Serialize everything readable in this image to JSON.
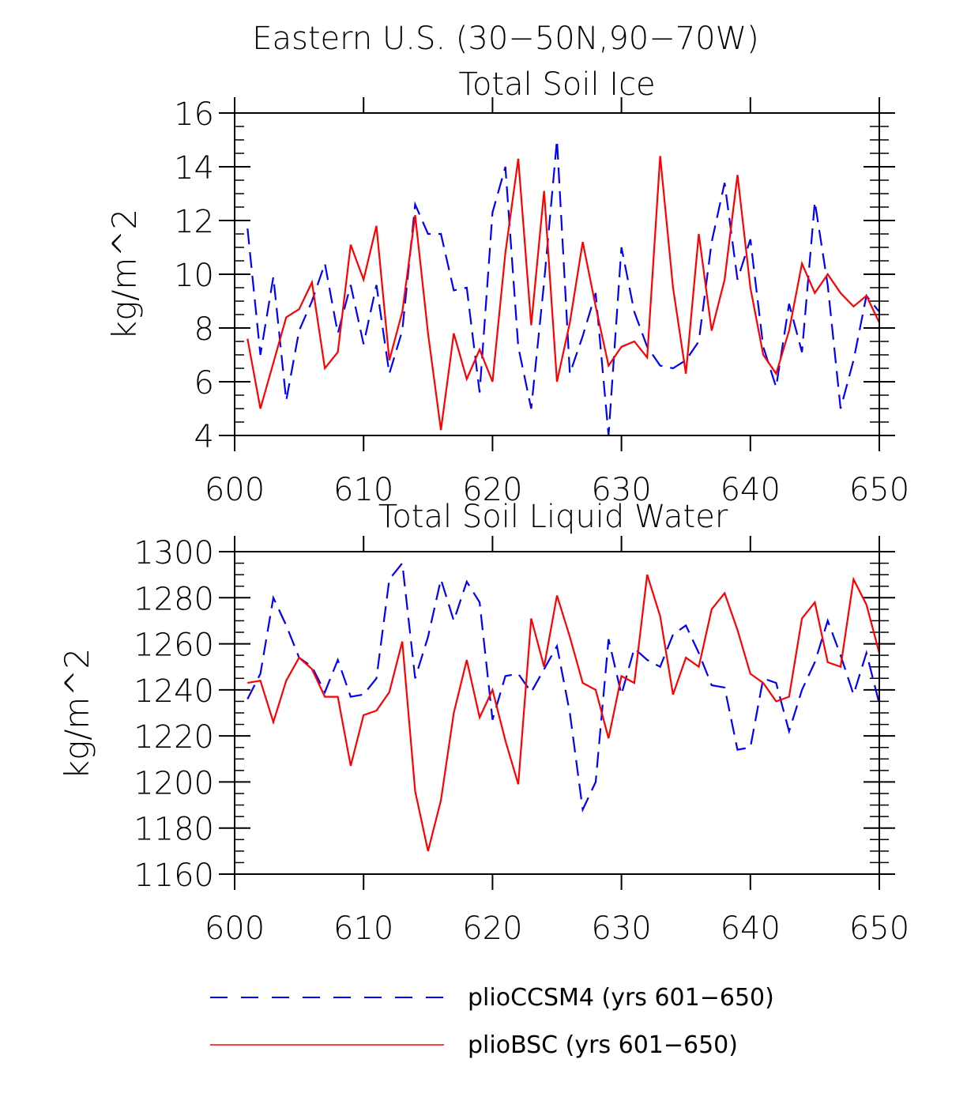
{
  "figure_title": "Eastern U.S. (30−50N,90−70W)",
  "legend": [
    {
      "label": "plioCCSM4 (yrs 601−650)",
      "color": "#0000ff",
      "style": "dashed"
    },
    {
      "label": "plioBSC (yrs 601−650)",
      "color": "#ff0000",
      "style": "solid"
    }
  ],
  "chart_data": [
    {
      "type": "line",
      "title": "Total Soil Ice",
      "xlabel": "",
      "ylabel": "kg/m^2",
      "xlim": [
        600,
        650
      ],
      "ylim": [
        4,
        16
      ],
      "xticks": [
        "600",
        "610",
        "620",
        "630",
        "640",
        "650"
      ],
      "yticks": [
        "4",
        "6",
        "8",
        "10",
        "12",
        "14",
        "16"
      ],
      "x": [
        601,
        602,
        603,
        604,
        605,
        606,
        607,
        608,
        609,
        610,
        611,
        612,
        613,
        614,
        615,
        616,
        617,
        618,
        619,
        620,
        621,
        622,
        623,
        624,
        625,
        626,
        627,
        628,
        629,
        630,
        631,
        632,
        633,
        634,
        635,
        636,
        637,
        638,
        639,
        640,
        641,
        642,
        643,
        644,
        645,
        646,
        647,
        648,
        649,
        650
      ],
      "series": [
        {
          "name": "plioCCSM4 (yrs 601−650)",
          "color": "#0000ff",
          "style": "dashed",
          "values": [
            11.7,
            7.0,
            9.9,
            5.3,
            7.9,
            9.0,
            10.4,
            7.8,
            9.6,
            7.4,
            9.6,
            6.3,
            7.9,
            12.6,
            11.5,
            11.5,
            9.4,
            9.5,
            5.6,
            12.3,
            14.0,
            7.3,
            5.0,
            9.7,
            15.0,
            6.3,
            7.7,
            9.3,
            4.0,
            11.0,
            8.6,
            7.3,
            6.6,
            6.5,
            6.8,
            7.5,
            11.2,
            13.4,
            9.8,
            11.3,
            7.3,
            5.8,
            8.9,
            7.1,
            12.7,
            9.6,
            5.0,
            6.8,
            9.2,
            8.6
          ]
        },
        {
          "name": "plioBSC (yrs 601−650)",
          "color": "#ff0000",
          "style": "solid",
          "values": [
            7.6,
            5.0,
            6.7,
            8.4,
            8.7,
            9.7,
            6.5,
            7.1,
            11.1,
            9.8,
            11.8,
            6.8,
            8.6,
            12.2,
            7.8,
            4.2,
            7.8,
            6.1,
            7.2,
            6.0,
            10.8,
            14.3,
            8.1,
            13.1,
            6.0,
            8.2,
            11.2,
            8.8,
            6.6,
            7.3,
            7.5,
            6.9,
            14.4,
            9.5,
            6.3,
            11.5,
            7.9,
            9.8,
            13.7,
            9.5,
            7.0,
            6.3,
            7.9,
            10.4,
            9.3,
            10.0,
            9.3,
            8.8,
            9.2,
            8.2
          ]
        }
      ]
    },
    {
      "type": "line",
      "title": "Total Soil Liquid Water",
      "xlabel": "",
      "ylabel": "kg/m^2",
      "xlim": [
        600,
        650
      ],
      "ylim": [
        1160,
        1300
      ],
      "xticks": [
        "600",
        "610",
        "620",
        "630",
        "640",
        "650"
      ],
      "yticks": [
        "1160",
        "1180",
        "1200",
        "1220",
        "1240",
        "1260",
        "1280",
        "1300"
      ],
      "x": [
        601,
        602,
        603,
        604,
        605,
        606,
        607,
        608,
        609,
        610,
        611,
        612,
        613,
        614,
        615,
        616,
        617,
        618,
        619,
        620,
        621,
        622,
        623,
        624,
        625,
        626,
        627,
        628,
        629,
        630,
        631,
        632,
        633,
        634,
        635,
        636,
        637,
        638,
        639,
        640,
        641,
        642,
        643,
        644,
        645,
        646,
        647,
        648,
        649,
        650
      ],
      "series": [
        {
          "name": "plioCCSM4 (yrs 601−650)",
          "color": "#0000ff",
          "style": "dashed",
          "values": [
            1236,
            1247,
            1280,
            1268,
            1254,
            1250,
            1239,
            1253,
            1237,
            1238,
            1245,
            1288,
            1295,
            1245,
            1263,
            1288,
            1270,
            1287,
            1278,
            1227,
            1246,
            1247,
            1239,
            1249,
            1259,
            1230,
            1188,
            1200,
            1262,
            1238,
            1258,
            1253,
            1250,
            1264,
            1268,
            1256,
            1242,
            1241,
            1214,
            1215,
            1245,
            1243,
            1222,
            1240,
            1252,
            1270,
            1255,
            1238,
            1256,
            1234
          ]
        },
        {
          "name": "plioBSC (yrs 601−650)",
          "color": "#ff0000",
          "style": "solid",
          "values": [
            1243,
            1244,
            1226,
            1244,
            1254,
            1249,
            1237,
            1237,
            1207,
            1229,
            1231,
            1239,
            1261,
            1196,
            1170,
            1192,
            1230,
            1253,
            1228,
            1240,
            1218,
            1199,
            1271,
            1250,
            1281,
            1263,
            1243,
            1240,
            1219,
            1246,
            1243,
            1290,
            1272,
            1238,
            1254,
            1250,
            1275,
            1282,
            1266,
            1247,
            1243,
            1235,
            1237,
            1271,
            1278,
            1252,
            1250,
            1288,
            1277,
            1256
          ]
        }
      ]
    }
  ]
}
